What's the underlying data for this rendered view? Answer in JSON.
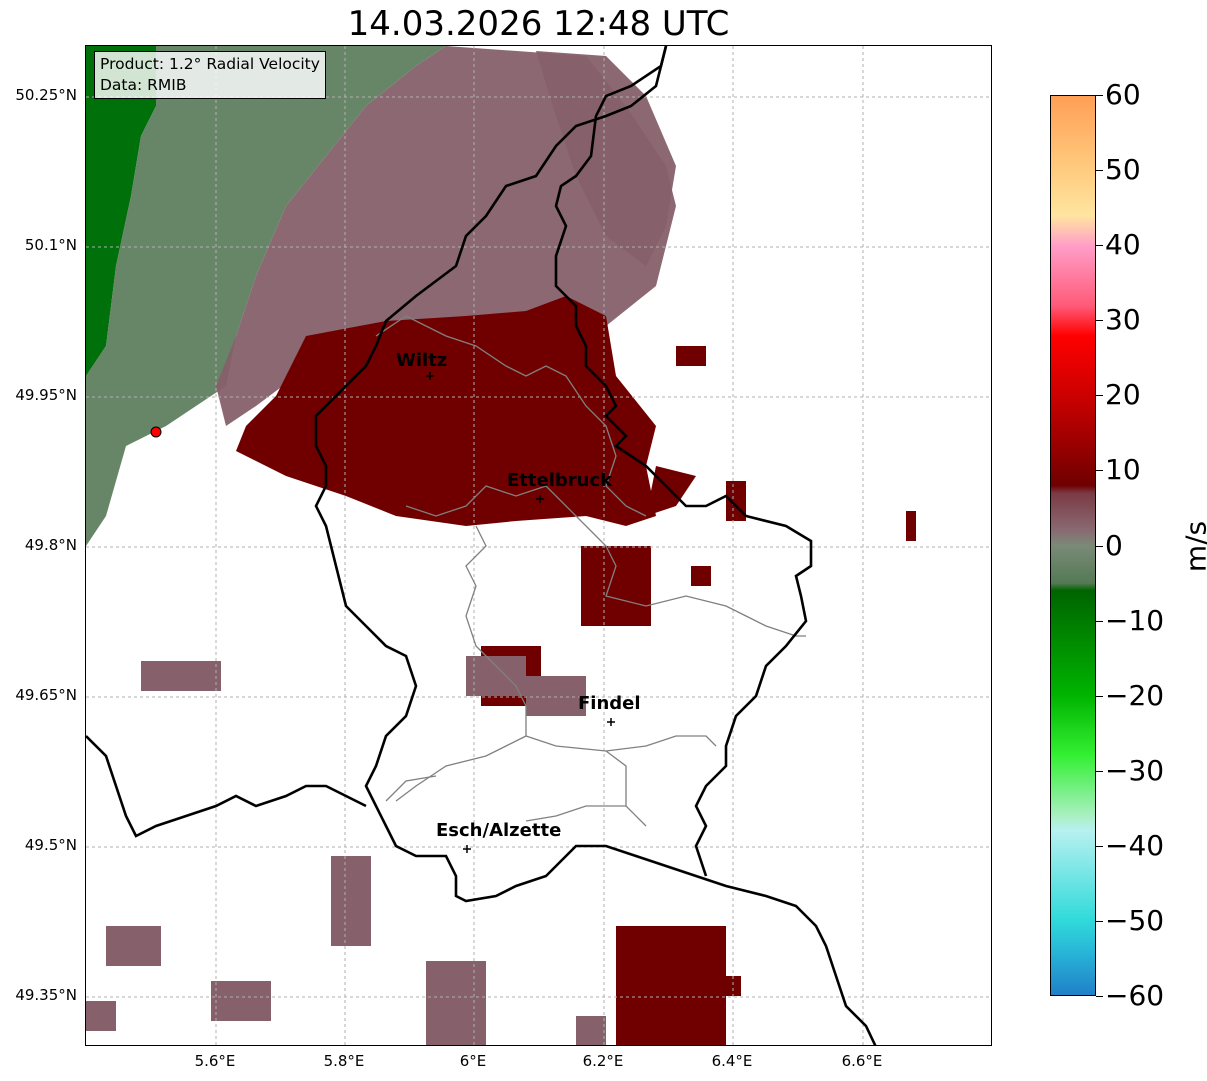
{
  "title": "14.03.2026 12:48 UTC",
  "info": {
    "product": "Product: 1.2° Radial Velocity",
    "data_source": "Data: RMIB"
  },
  "lat_labels": [
    "50.25°N",
    "50.1°N",
    "49.95°N",
    "49.8°N",
    "49.65°N",
    "49.5°N",
    "49.35°N"
  ],
  "lon_labels": [
    "5.6°E",
    "5.8°E",
    "6°E",
    "6.2°E",
    "6.4°E",
    "6.6°E"
  ],
  "cities": [
    {
      "name": "Wiltz"
    },
    {
      "name": "Ettelbruck"
    },
    {
      "name": "Findel"
    },
    {
      "name": "Esch/Alzette"
    }
  ],
  "colorbar": {
    "unit": "m/s",
    "min": -60,
    "max": 60,
    "tick_labels": [
      "60",
      "50",
      "40",
      "30",
      "20",
      "10",
      "0",
      "−10",
      "−20",
      "−30",
      "−40",
      "−50",
      "−60"
    ],
    "stops": [
      {
        "value": 60,
        "color": "#ff9f55"
      },
      {
        "value": 50,
        "color": "#ffcc80"
      },
      {
        "value": 44,
        "color": "#ffe5a0"
      },
      {
        "value": 40,
        "color": "#ff9ec8"
      },
      {
        "value": 32,
        "color": "#ff5a78"
      },
      {
        "value": 28,
        "color": "#ff0000"
      },
      {
        "value": 20,
        "color": "#cc0000"
      },
      {
        "value": 8,
        "color": "#700000"
      },
      {
        "value": 7,
        "color": "#7a3a44"
      },
      {
        "value": 2,
        "color": "#8a6a72"
      },
      {
        "value": 0,
        "color": "#7a8a78"
      },
      {
        "value": -5,
        "color": "#557a55"
      },
      {
        "value": -6,
        "color": "#006400"
      },
      {
        "value": -20,
        "color": "#00b400"
      },
      {
        "value": -28,
        "color": "#33f033"
      },
      {
        "value": -36,
        "color": "#a8f0c0"
      },
      {
        "value": -38,
        "color": "#b8f0f0"
      },
      {
        "value": -50,
        "color": "#30dada"
      },
      {
        "value": -54,
        "color": "#28b8d8"
      },
      {
        "value": -60,
        "color": "#2080c8"
      }
    ]
  },
  "colors": {
    "approaching": "#006f00",
    "receding_strong": "#700000",
    "receding_weak": "#86606a",
    "near_zero": "#5f8060",
    "radar_site": "#ff0000"
  }
}
